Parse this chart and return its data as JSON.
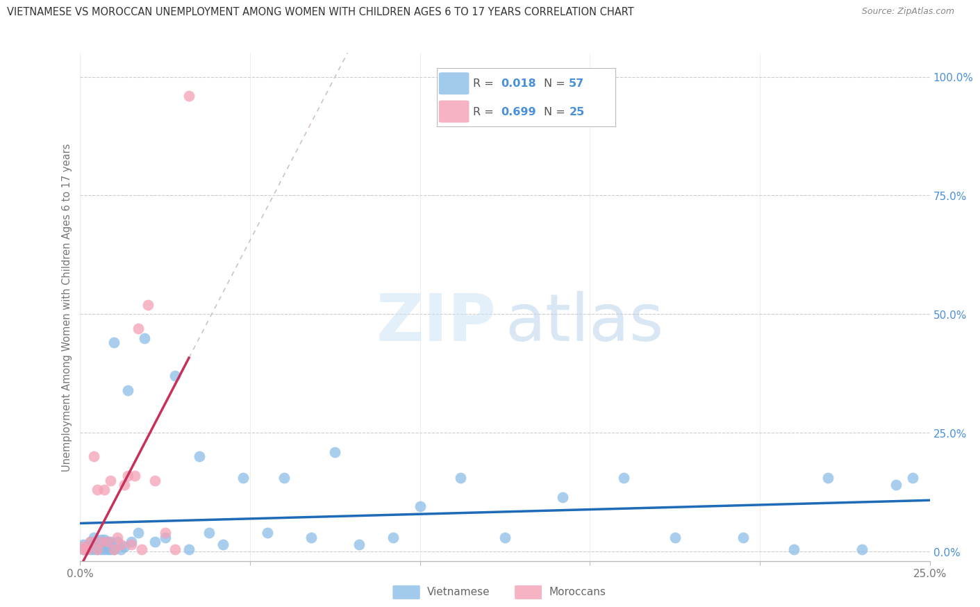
{
  "title": "VIETNAMESE VS MOROCCAN UNEMPLOYMENT AMONG WOMEN WITH CHILDREN AGES 6 TO 17 YEARS CORRELATION CHART",
  "source": "Source: ZipAtlas.com",
  "ylabel": "Unemployment Among Women with Children Ages 6 to 17 years",
  "xlim": [
    0.0,
    0.25
  ],
  "ylim": [
    -0.02,
    1.05
  ],
  "yticks": [
    0.0,
    0.25,
    0.5,
    0.75,
    1.0
  ],
  "ytick_labels": [
    "0.0%",
    "25.0%",
    "50.0%",
    "75.0%",
    "100.0%"
  ],
  "xtick_left_label": "0.0%",
  "xtick_right_label": "25.0%",
  "watermark_zip": "ZIP",
  "watermark_atlas": "atlas",
  "legend_R_viet": "R = 0.018",
  "legend_N_viet": "N = 57",
  "legend_R_mor": "R = 0.699",
  "legend_N_mor": "N = 25",
  "viet_color": "#8bbde8",
  "mor_color": "#f4a0b5",
  "trend_viet_color": "#1e6bb8",
  "trend_mor_color": "#c8305a",
  "trend_mor_dash_color": "#d0c0c8",
  "legend_text_color": "#555555",
  "legend_val_color": "#4a90d9",
  "title_color": "#333333",
  "source_color": "#888888",
  "ylabel_color": "#777777",
  "grid_color": "#cccccc",
  "axis_color": "#bbbbbb",
  "xtick_color": "#777777",
  "bottom_legend_color": "#666666",
  "vietnamese_x": [
    0.001,
    0.001,
    0.002,
    0.002,
    0.003,
    0.003,
    0.003,
    0.004,
    0.004,
    0.004,
    0.005,
    0.005,
    0.006,
    0.006,
    0.006,
    0.007,
    0.007,
    0.007,
    0.008,
    0.008,
    0.009,
    0.009,
    0.01,
    0.01,
    0.011,
    0.012,
    0.013,
    0.014,
    0.015,
    0.017,
    0.019,
    0.022,
    0.025,
    0.028,
    0.032,
    0.035,
    0.038,
    0.042,
    0.048,
    0.055,
    0.06,
    0.068,
    0.075,
    0.082,
    0.092,
    0.1,
    0.112,
    0.125,
    0.142,
    0.16,
    0.175,
    0.195,
    0.21,
    0.22,
    0.23,
    0.24,
    0.245
  ],
  "vietnamese_y": [
    0.005,
    0.015,
    0.005,
    0.01,
    0.005,
    0.01,
    0.02,
    0.005,
    0.015,
    0.03,
    0.005,
    0.015,
    0.005,
    0.015,
    0.025,
    0.005,
    0.01,
    0.025,
    0.005,
    0.02,
    0.005,
    0.02,
    0.005,
    0.44,
    0.02,
    0.005,
    0.01,
    0.34,
    0.02,
    0.04,
    0.45,
    0.02,
    0.03,
    0.37,
    0.005,
    0.2,
    0.04,
    0.015,
    0.155,
    0.04,
    0.155,
    0.03,
    0.21,
    0.015,
    0.03,
    0.095,
    0.155,
    0.03,
    0.115,
    0.155,
    0.03,
    0.03,
    0.005,
    0.155,
    0.005,
    0.14,
    0.155
  ],
  "moroccan_x": [
    0.001,
    0.001,
    0.002,
    0.003,
    0.004,
    0.005,
    0.005,
    0.006,
    0.007,
    0.008,
    0.009,
    0.01,
    0.011,
    0.012,
    0.013,
    0.014,
    0.015,
    0.016,
    0.017,
    0.018,
    0.02,
    0.022,
    0.025,
    0.028,
    0.032
  ],
  "moroccan_y": [
    0.005,
    0.01,
    0.005,
    0.02,
    0.2,
    0.13,
    0.005,
    0.02,
    0.13,
    0.02,
    0.15,
    0.005,
    0.03,
    0.015,
    0.14,
    0.16,
    0.015,
    0.16,
    0.47,
    0.005,
    0.52,
    0.15,
    0.04,
    0.005,
    0.96
  ],
  "figsize": [
    14.06,
    8.92
  ],
  "dpi": 100
}
